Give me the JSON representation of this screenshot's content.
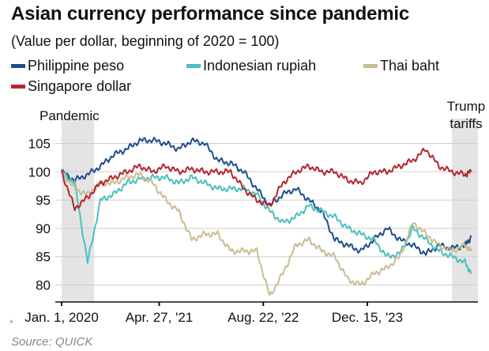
{
  "chart_data": {
    "type": "line",
    "title": "Asian currency performance since pandemic",
    "subtitle": "(Value per dollar, beginning of 2020 = 100)",
    "xlabel": "",
    "ylabel": "",
    "ylim": [
      77,
      108
    ],
    "yticks": [
      80,
      85,
      90,
      95,
      100,
      105
    ],
    "xtick_labels": [
      "Jan. 1, 2020",
      "Apr. 27, '21",
      "Aug. 22, '22",
      "Dec. 15, '23"
    ],
    "x_dates": [
      "2020-01",
      "2020-03",
      "2020-05",
      "2020-07",
      "2020-09",
      "2020-11",
      "2021-01",
      "2021-03",
      "2021-05",
      "2021-07",
      "2021-09",
      "2021-11",
      "2022-01",
      "2022-03",
      "2022-05",
      "2022-07",
      "2022-09",
      "2022-11",
      "2023-01",
      "2023-03",
      "2023-05",
      "2023-07",
      "2023-09",
      "2023-11",
      "2024-01",
      "2024-03",
      "2024-05",
      "2024-07",
      "2024-09",
      "2024-11",
      "2025-01",
      "2025-03",
      "2025-04"
    ],
    "series": [
      {
        "name": "Philippine peso",
        "color": "#1f4e8c",
        "values": [
          100,
          98.5,
          99.5,
          101,
          103,
          104,
          105.5,
          105.6,
          105,
          104,
          105.5,
          105,
          102,
          101.5,
          100,
          97,
          94,
          96,
          97,
          95,
          93,
          88,
          87,
          86,
          88,
          90,
          88,
          87,
          85.5,
          87,
          86.5,
          87,
          88.5
        ]
      },
      {
        "name": "Indonesian rupiah",
        "color": "#4bbfbf",
        "values": [
          100,
          98,
          84,
          95,
          96,
          98,
          98.7,
          99,
          99,
          98,
          99,
          98,
          97,
          97,
          97,
          96,
          93,
          91,
          92,
          94,
          93,
          92,
          90,
          89,
          88,
          85,
          85.5,
          90,
          88,
          86,
          85,
          84,
          82
        ]
      },
      {
        "name": "Thai baht",
        "color": "#c9bc92",
        "values": [
          100,
          97,
          96,
          98,
          98,
          99,
          99.5,
          98,
          95,
          93,
          88,
          89,
          89,
          86,
          86,
          86,
          78,
          82,
          87,
          88,
          86,
          85,
          81,
          80,
          82,
          83,
          85,
          91,
          89,
          87,
          86,
          87,
          86
        ]
      },
      {
        "name": "Singapore dollar",
        "color": "#b5262e",
        "values": [
          100,
          93.5,
          95.5,
          98,
          99,
          100,
          101,
          100,
          101,
          100,
          100.5,
          100,
          100,
          100,
          97,
          95,
          94,
          98,
          100,
          101,
          100,
          100,
          98.5,
          98,
          100,
          100,
          101,
          102,
          104,
          101,
          100,
          99.5,
          100
        ]
      }
    ],
    "annotations": [
      {
        "label": "Pandemic",
        "from": "2020-01",
        "to": "2020-05"
      },
      {
        "label": "Trump tariffs",
        "from": "2025-01",
        "to": "2025-04"
      }
    ],
    "source": "Source: QUICK",
    "footnote": "*"
  }
}
